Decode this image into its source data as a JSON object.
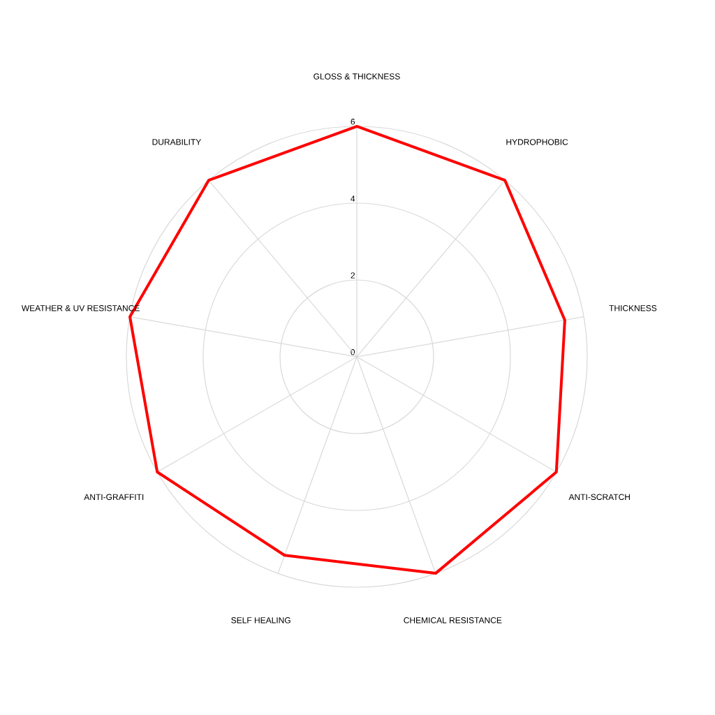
{
  "chart_data": {
    "type": "radar",
    "categories": [
      "GLOSS & THICKNESS",
      "HYDROPHOBIC",
      "THICKNESS",
      "ANTI-SCRATCH",
      "CHEMICAL RESISTANCE",
      "SELF HEALING",
      "ANTI-GRAFFITI",
      "WEATHER & UV RESISTANCE",
      "DURABILITY"
    ],
    "series": [
      {
        "color": "#ff0000",
        "values": [
          6,
          6,
          5.5,
          6,
          6,
          5.5,
          6,
          6,
          6
        ]
      }
    ],
    "ylim": [
      0,
      6
    ],
    "yticks": [
      0,
      2,
      4,
      6
    ],
    "grid": true
  }
}
